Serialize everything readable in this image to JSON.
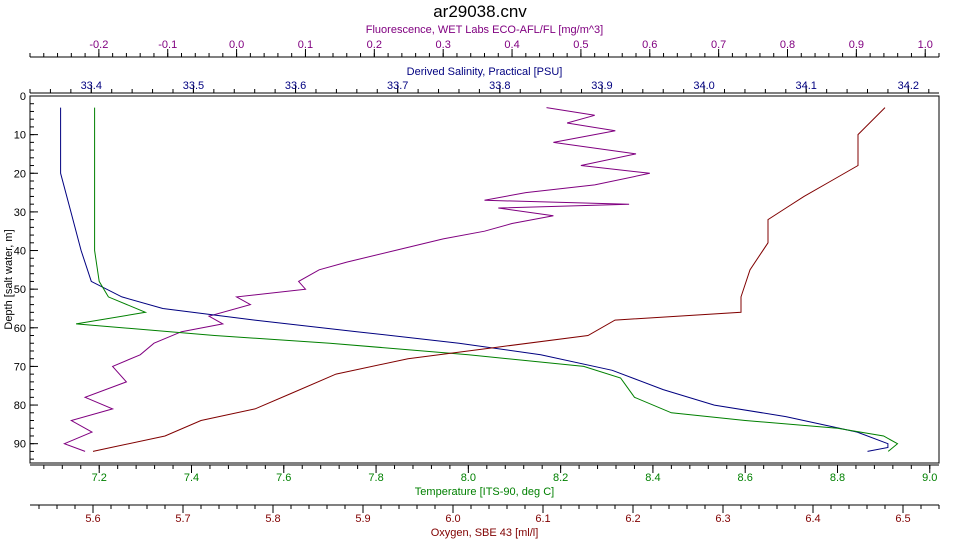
{
  "chart_data": {
    "type": "line",
    "title": "ar29038.cnv",
    "y_axis": {
      "label": "Depth [salt water, m]",
      "range": [
        0,
        95
      ],
      "ticks": [
        0,
        10,
        20,
        30,
        40,
        50,
        60,
        70,
        80,
        90
      ],
      "inverted": true
    },
    "x_axes": [
      {
        "id": "fluorescence",
        "position": "top",
        "label": "Fluorescence, WET Labs ECO-AFL/FL [mg/m^3]",
        "color": "#800080",
        "range": [
          -0.3,
          1.02
        ],
        "ticks": [
          -0.2,
          -0.1,
          0.0,
          0.1,
          0.2,
          0.3,
          0.4,
          0.5,
          0.6,
          0.7,
          0.8,
          0.9,
          1.0
        ],
        "tick_labels": [
          "-0.2",
          "-0.1",
          "0.0",
          "0.1",
          "0.2",
          "0.3",
          "0.4",
          "0.5",
          "0.6",
          "0.7",
          "0.8",
          "0.9",
          "1.0"
        ]
      },
      {
        "id": "salinity",
        "position": "top",
        "label": "Derived Salinity, Practical [PSU]",
        "color": "#000080",
        "range": [
          33.34,
          34.23
        ],
        "ticks": [
          33.4,
          33.5,
          33.6,
          33.7,
          33.8,
          33.9,
          34.0,
          34.1,
          34.2
        ],
        "tick_labels": [
          "33.4",
          "33.5",
          "33.6",
          "33.7",
          "33.8",
          "33.9",
          "34.0",
          "34.1",
          "34.2"
        ]
      },
      {
        "id": "temperature",
        "position": "bottom",
        "label": "Temperature [ITS-90, deg C]",
        "color": "#008000",
        "range": [
          7.05,
          9.02
        ],
        "ticks": [
          7.2,
          7.4,
          7.6,
          7.8,
          8.0,
          8.2,
          8.4,
          8.6,
          8.8,
          9.0
        ],
        "tick_labels": [
          "7.2",
          "7.4",
          "7.6",
          "7.8",
          "8.0",
          "8.2",
          "8.4",
          "8.6",
          "8.8",
          "9.0"
        ]
      },
      {
        "id": "oxygen",
        "position": "bottom",
        "label": "Oxygen, SBE 43 [ml/l]",
        "color": "#800000",
        "range": [
          5.53,
          6.54
        ],
        "ticks": [
          5.6,
          5.7,
          5.8,
          5.9,
          6.0,
          6.1,
          6.2,
          6.3,
          6.4,
          6.5
        ],
        "tick_labels": [
          "5.6",
          "5.7",
          "5.8",
          "5.9",
          "6.0",
          "6.1",
          "6.2",
          "6.3",
          "6.4",
          "6.5"
        ]
      }
    ],
    "series": [
      {
        "axis": "fluorescence",
        "color": "#800080",
        "points": [
          [
            0.45,
            3
          ],
          [
            0.52,
            5
          ],
          [
            0.48,
            7
          ],
          [
            0.55,
            9
          ],
          [
            0.46,
            12
          ],
          [
            0.58,
            15
          ],
          [
            0.5,
            18
          ],
          [
            0.6,
            20
          ],
          [
            0.52,
            23
          ],
          [
            0.42,
            25
          ],
          [
            0.36,
            27
          ],
          [
            0.57,
            28
          ],
          [
            0.38,
            29
          ],
          [
            0.46,
            31
          ],
          [
            0.4,
            33
          ],
          [
            0.36,
            35
          ],
          [
            0.3,
            37
          ],
          [
            0.23,
            40
          ],
          [
            0.16,
            43
          ],
          [
            0.12,
            45
          ],
          [
            0.09,
            48
          ],
          [
            0.1,
            50
          ],
          [
            0.0,
            52
          ],
          [
            0.02,
            54
          ],
          [
            -0.04,
            57
          ],
          [
            -0.02,
            59
          ],
          [
            -0.08,
            61
          ],
          [
            -0.12,
            64
          ],
          [
            -0.14,
            67
          ],
          [
            -0.18,
            70
          ],
          [
            -0.16,
            74
          ],
          [
            -0.22,
            78
          ],
          [
            -0.18,
            81
          ],
          [
            -0.24,
            84
          ],
          [
            -0.21,
            87
          ],
          [
            -0.25,
            90
          ],
          [
            -0.22,
            92
          ]
        ]
      },
      {
        "axis": "salinity",
        "color": "#000080",
        "points": [
          [
            33.37,
            3
          ],
          [
            33.37,
            10
          ],
          [
            33.37,
            20
          ],
          [
            33.38,
            30
          ],
          [
            33.39,
            40
          ],
          [
            33.4,
            48
          ],
          [
            33.43,
            52
          ],
          [
            33.47,
            55
          ],
          [
            33.56,
            58
          ],
          [
            33.66,
            61
          ],
          [
            33.76,
            64
          ],
          [
            33.84,
            67
          ],
          [
            33.91,
            71
          ],
          [
            33.96,
            76
          ],
          [
            34.01,
            80
          ],
          [
            34.08,
            83
          ],
          [
            34.15,
            87
          ],
          [
            34.18,
            90
          ],
          [
            34.18,
            91
          ],
          [
            34.16,
            92
          ]
        ]
      },
      {
        "axis": "temperature",
        "color": "#008000",
        "points": [
          [
            7.19,
            3
          ],
          [
            7.19,
            10
          ],
          [
            7.19,
            22
          ],
          [
            7.19,
            30
          ],
          [
            7.19,
            40
          ],
          [
            7.2,
            48
          ],
          [
            7.22,
            52
          ],
          [
            7.3,
            56
          ],
          [
            7.15,
            59
          ],
          [
            7.45,
            62
          ],
          [
            7.7,
            64
          ],
          [
            8.0,
            67
          ],
          [
            8.25,
            70
          ],
          [
            8.33,
            73
          ],
          [
            8.36,
            78
          ],
          [
            8.44,
            82
          ],
          [
            8.6,
            84
          ],
          [
            8.8,
            86
          ],
          [
            8.9,
            88
          ],
          [
            8.93,
            90
          ],
          [
            8.91,
            92
          ]
        ]
      },
      {
        "axis": "oxygen",
        "color": "#800000",
        "points": [
          [
            6.48,
            3
          ],
          [
            6.45,
            10
          ],
          [
            6.45,
            18
          ],
          [
            6.42,
            22
          ],
          [
            6.39,
            26
          ],
          [
            6.37,
            29
          ],
          [
            6.35,
            32
          ],
          [
            6.35,
            38
          ],
          [
            6.33,
            45
          ],
          [
            6.32,
            52
          ],
          [
            6.32,
            56
          ],
          [
            6.18,
            58
          ],
          [
            6.15,
            62
          ],
          [
            6.05,
            65
          ],
          [
            5.95,
            68
          ],
          [
            5.87,
            72
          ],
          [
            5.82,
            77
          ],
          [
            5.78,
            81
          ],
          [
            5.72,
            84
          ],
          [
            5.68,
            88
          ],
          [
            5.62,
            91
          ],
          [
            5.6,
            92
          ]
        ]
      }
    ],
    "grid": false,
    "legend": "none"
  }
}
